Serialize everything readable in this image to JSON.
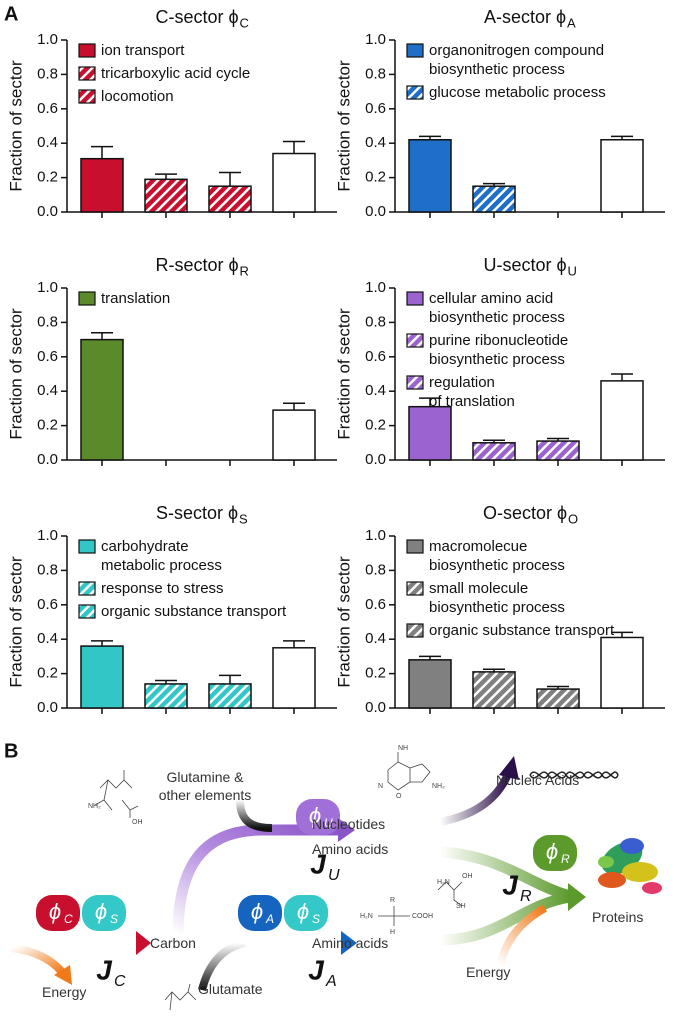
{
  "panel_labels": [
    "A",
    "B"
  ],
  "chart_data": [
    {
      "type": "bar",
      "title": "C-sector ϕ",
      "title_sub": "C",
      "ylabel": "Fraction of sector",
      "categories": [
        "ion transport",
        "tricarboxylic acid cycle",
        "locomotion",
        null
      ],
      "values": [
        0.31,
        0.19,
        0.15,
        0.34
      ],
      "errors": [
        0.07,
        0.03,
        0.08,
        0.07
      ],
      "colors": [
        "#c8102e",
        "#c8102e",
        "#c8102e",
        "#ffffff"
      ],
      "hatch": [
        false,
        true,
        true,
        false
      ],
      "ylim": [
        0,
        1
      ],
      "yticks": [
        {
          "value": 0,
          "label": "0.0"
        },
        0.2,
        0.4,
        0.6,
        0.8,
        {
          "value": 1,
          "label": "1.0"
        }
      ]
    },
    {
      "type": "bar",
      "title": "A-sector ϕ",
      "title_sub": "A",
      "ylabel": "Fraction of sector",
      "categories": [
        "organonitrogen compound\nbiosynthetic process",
        "glucose metabolic process",
        null,
        null
      ],
      "values": [
        0.42,
        0.15,
        null,
        0.42
      ],
      "errors": [
        0.02,
        0.015,
        null,
        0.02
      ],
      "colors": [
        "#1f6fc8",
        "#1f6fc8",
        "#1f6fc8",
        "#ffffff"
      ],
      "hatch": [
        false,
        true,
        true,
        false
      ],
      "ylim": [
        0,
        1
      ],
      "yticks": [
        {
          "value": 0,
          "label": "0.0"
        },
        0.2,
        0.4,
        0.6,
        0.8,
        {
          "value": 1,
          "label": "1.0"
        }
      ]
    },
    {
      "type": "bar",
      "title": "R-sector ϕ",
      "title_sub": "R",
      "ylabel": "Fraction of sector",
      "categories": [
        "translation",
        null,
        null,
        null
      ],
      "values": [
        0.7,
        null,
        null,
        0.29
      ],
      "errors": [
        0.04,
        null,
        null,
        0.04
      ],
      "colors": [
        "#5a8a2a",
        "#5a8a2a",
        "#5a8a2a",
        "#ffffff"
      ],
      "hatch": [
        false,
        true,
        true,
        false
      ],
      "ylim": [
        0,
        1
      ],
      "yticks": [
        {
          "value": 0,
          "label": "0.0"
        },
        0.2,
        0.4,
        0.6,
        0.8,
        {
          "value": 1,
          "label": "1.0"
        }
      ]
    },
    {
      "type": "bar",
      "title": "U-sector ϕ",
      "title_sub": "U",
      "ylabel": "Fraction of sector",
      "categories": [
        "cellular amino acid\nbiosynthetic process",
        "purine ribonucleotide\nbiosynthetic process",
        "regulation\nof translation",
        null
      ],
      "values": [
        0.31,
        0.1,
        0.11,
        0.46
      ],
      "errors": [
        0.05,
        0.015,
        0.015,
        0.04
      ],
      "colors": [
        "#9b63d0",
        "#9b63d0",
        "#9b63d0",
        "#ffffff"
      ],
      "hatch": [
        false,
        true,
        true,
        false
      ],
      "ylim": [
        0,
        1
      ],
      "yticks": [
        {
          "value": 0,
          "label": "0.0"
        },
        0.2,
        0.4,
        0.6,
        0.8,
        {
          "value": 1,
          "label": "1.0"
        }
      ]
    },
    {
      "type": "bar",
      "title": "S-sector ϕ",
      "title_sub": "S",
      "ylabel": "Fraction of sector",
      "categories": [
        "carbohydrate\nmetabolic process",
        "response to stress",
        "organic substance transport",
        null
      ],
      "values": [
        0.36,
        0.14,
        0.14,
        0.35
      ],
      "errors": [
        0.03,
        0.02,
        0.05,
        0.04
      ],
      "colors": [
        "#33c6c6",
        "#33c6c6",
        "#33c6c6",
        "#ffffff"
      ],
      "hatch": [
        false,
        true,
        true,
        false
      ],
      "ylim": [
        0,
        1
      ],
      "yticks": [
        {
          "value": 0,
          "label": "0.0"
        },
        0.2,
        0.4,
        0.6,
        0.8,
        {
          "value": 1,
          "label": "1.0"
        }
      ]
    },
    {
      "type": "bar",
      "title": "O-sector ϕ",
      "title_sub": "O",
      "ylabel": "Fraction of sector",
      "categories": [
        "macromolecue\nbiosynthetic process",
        "small molecule\nbiosynthetic process",
        "organic substance transport",
        null
      ],
      "values": [
        0.28,
        0.21,
        0.11,
        0.41
      ],
      "errors": [
        0.02,
        0.015,
        0.015,
        0.03
      ],
      "colors": [
        "#808080",
        "#808080",
        "#808080",
        "#ffffff"
      ],
      "hatch": [
        false,
        true,
        true,
        false
      ],
      "ylim": [
        0,
        1
      ],
      "yticks": [
        {
          "value": 0,
          "label": "0.0"
        },
        0.2,
        0.4,
        0.6,
        0.8,
        {
          "value": 1,
          "label": "1.0"
        }
      ]
    }
  ],
  "diagram": {
    "texts": [
      "Glutamine &\nother elements",
      "Nucleotides",
      "Amino acids",
      "Nucleic Acids",
      "Carbon",
      "Amino acids",
      "Glutamate",
      "Energy",
      "Energy",
      "Proteins"
    ],
    "sectors": [
      {
        "symbol": "ϕ",
        "sub": "C",
        "color": "#c8102e"
      },
      {
        "symbol": "ϕ",
        "sub": "S",
        "color": "#35c8c8"
      },
      {
        "symbol": "ϕ",
        "sub": "A",
        "color": "#1565c0"
      },
      {
        "symbol": "ϕ",
        "sub": "S",
        "color": "#35c8c8"
      },
      {
        "symbol": "ϕ",
        "sub": "U",
        "color": "#a070d8"
      },
      {
        "symbol": "ϕ",
        "sub": "R",
        "color": "#5c9a2c"
      }
    ],
    "fluxes": [
      {
        "symbol": "J",
        "sub": "U"
      },
      {
        "symbol": "J",
        "sub": "R"
      },
      {
        "symbol": "J",
        "sub": "C"
      },
      {
        "symbol": "J",
        "sub": "A"
      }
    ],
    "chem_labels": [
      "NH₂",
      "N",
      "NH",
      "O",
      "H₂N",
      "OH",
      "SH",
      "R",
      "H₂N",
      "COOH",
      "H",
      "NH₂",
      "OH"
    ]
  }
}
